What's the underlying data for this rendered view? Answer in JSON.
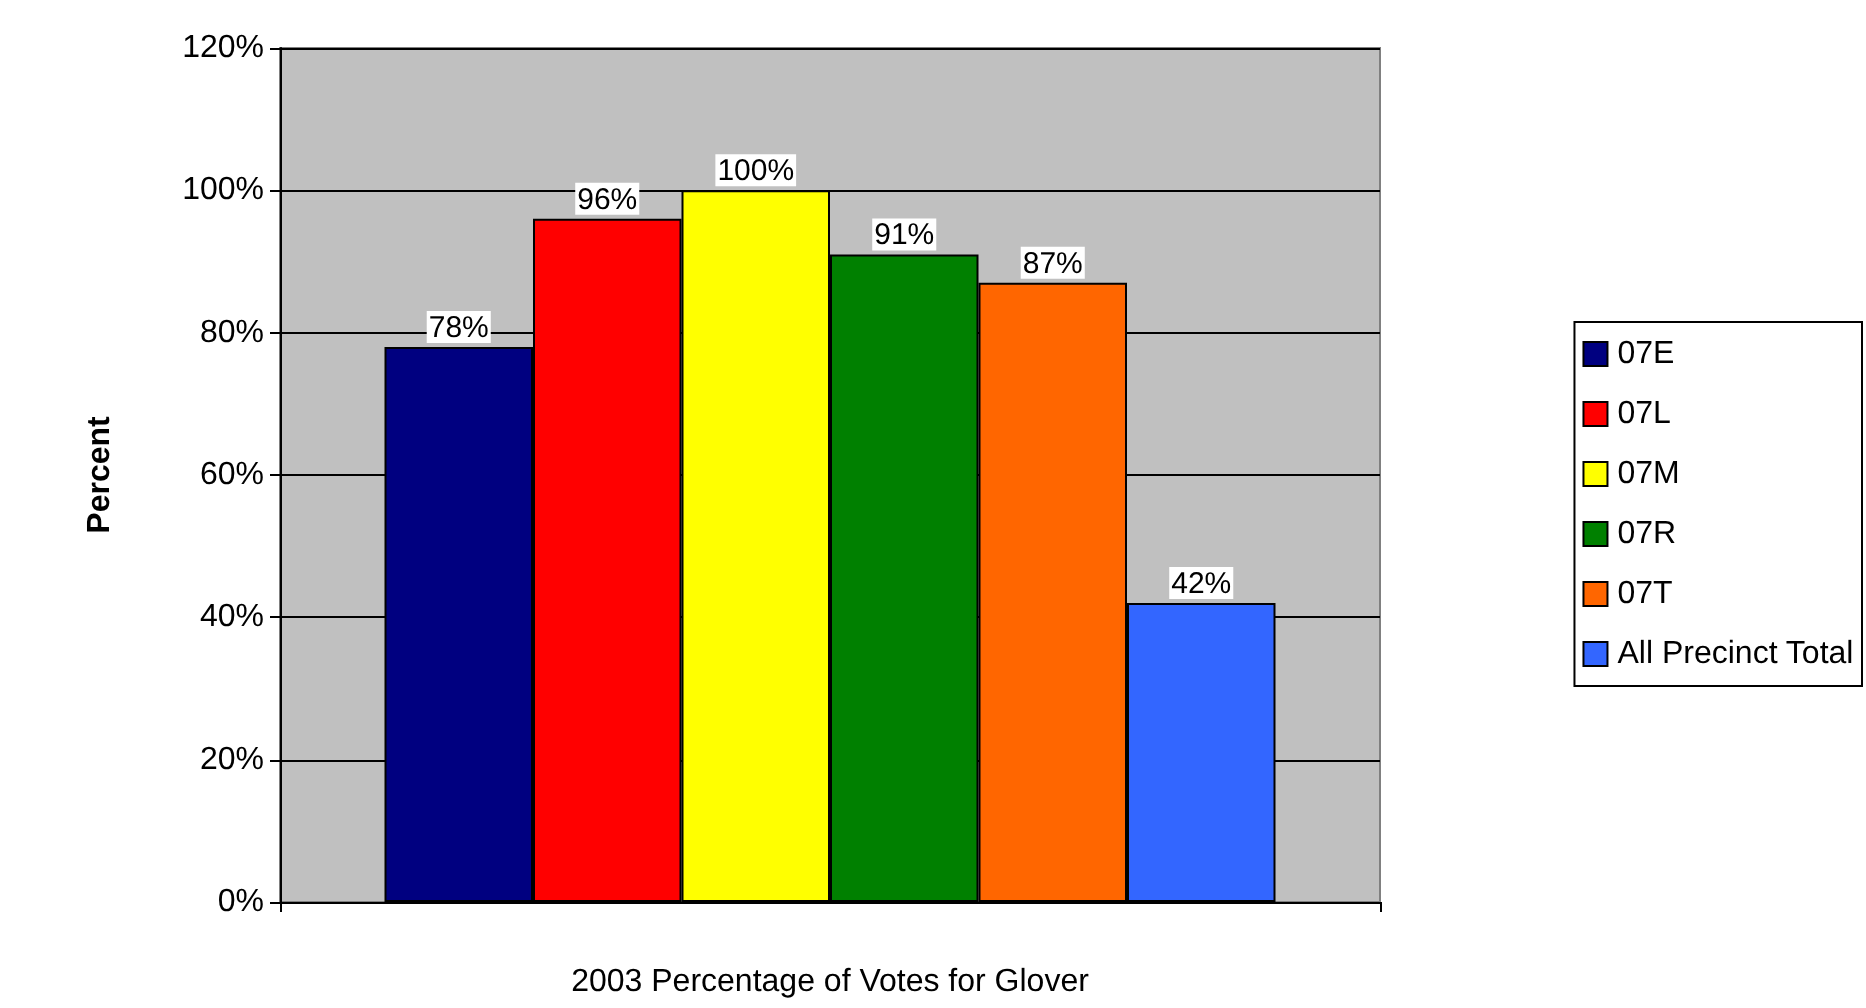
{
  "chart_data": {
    "type": "bar",
    "xlabel": "2003 Percentage of Votes for Glover",
    "ylabel": "Percent",
    "categories": [
      null
    ],
    "series": [
      {
        "name": "07E",
        "color": "#000080",
        "values": [
          78
        ],
        "value_labels": [
          "78%"
        ]
      },
      {
        "name": "07L",
        "color": "#ff0000",
        "values": [
          96
        ],
        "value_labels": [
          "96%"
        ]
      },
      {
        "name": "07M",
        "color": "#ffff00",
        "values": [
          100
        ],
        "value_labels": [
          "100%"
        ]
      },
      {
        "name": "07R",
        "color": "#008000",
        "values": [
          91
        ],
        "value_labels": [
          "91%"
        ]
      },
      {
        "name": "07T",
        "color": "#ff6600",
        "values": [
          87
        ],
        "value_labels": [
          "87%"
        ]
      },
      {
        "name": "All Precinct Total",
        "color": "#3366ff",
        "values": [
          42
        ],
        "value_labels": [
          "42%"
        ]
      }
    ],
    "ylim": [
      0,
      120
    ],
    "yticks": [
      {
        "value": 0,
        "label": "0%"
      },
      {
        "value": 20,
        "label": "20%"
      },
      {
        "value": 40,
        "label": "40%"
      },
      {
        "value": 60,
        "label": "60%"
      },
      {
        "value": 80,
        "label": "80%"
      },
      {
        "value": 100,
        "label": "100%"
      },
      {
        "value": 120,
        "label": "120%"
      }
    ],
    "grid": "y",
    "legend": "right"
  }
}
